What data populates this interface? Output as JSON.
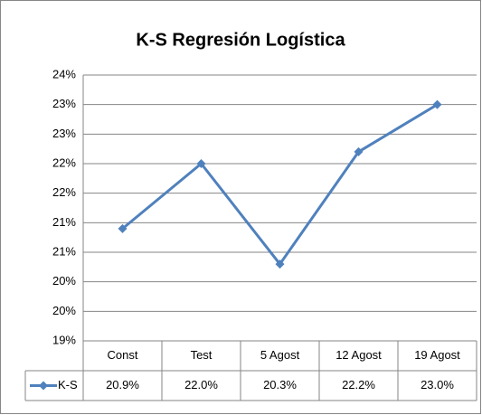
{
  "chart_data": {
    "type": "line",
    "title": "K-S Regresión Logística",
    "categories": [
      "Const",
      "Test",
      "5 Agost",
      "12 Agost",
      "19 Agost"
    ],
    "series": [
      {
        "name": "K-S",
        "color": "#4f81bd",
        "values": [
          20.9,
          22.0,
          20.3,
          22.2,
          23.0
        ],
        "value_labels": [
          "20.9%",
          "22.0%",
          "20.3%",
          "22.2%",
          "23.0%"
        ]
      }
    ],
    "ylim": [
      19,
      23.5
    ],
    "yticks": [
      {
        "value": 19,
        "label": "19%"
      },
      {
        "value": 19.5,
        "label": "20%"
      },
      {
        "value": 20,
        "label": "20%"
      },
      {
        "value": 20.5,
        "label": "21%"
      },
      {
        "value": 21,
        "label": "21%"
      },
      {
        "value": 21.5,
        "label": "22%"
      },
      {
        "value": 22,
        "label": "22%"
      },
      {
        "value": 22.5,
        "label": "23%"
      },
      {
        "value": 23,
        "label": "23%"
      },
      {
        "value": 23.5,
        "label": "24%"
      }
    ],
    "grid": true
  }
}
